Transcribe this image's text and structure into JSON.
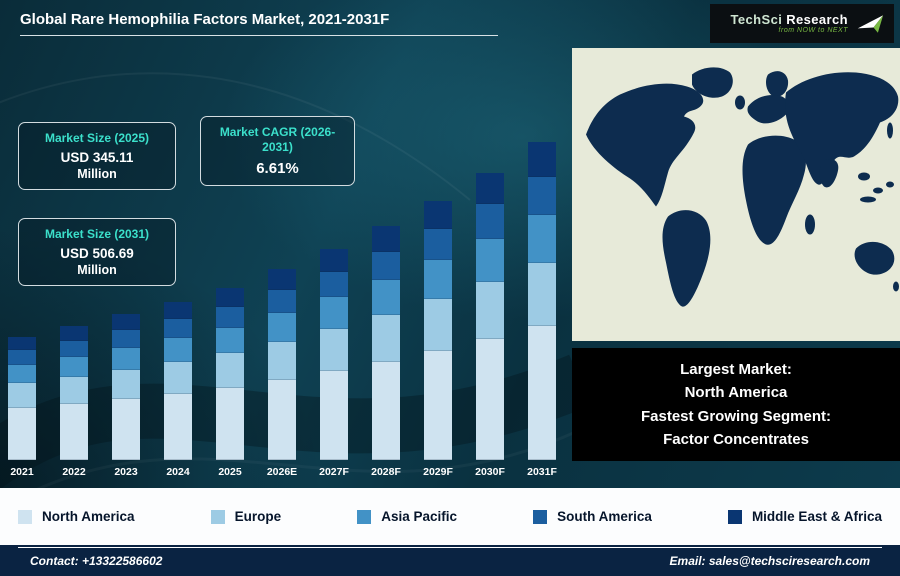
{
  "header": {
    "title": "Global Rare Hemophilia Factors Market, 2021-2031F",
    "logo": {
      "brand_techsci": "TechSci",
      "brand_research": "Research",
      "tagline": "from NOW to NEXT"
    }
  },
  "info_boxes": [
    {
      "title": "Market Size (2025)",
      "value": "USD 345.11",
      "unit": "Million"
    },
    {
      "title": "Market CAGR (2026-2031)",
      "value": "6.61%",
      "unit": ""
    },
    {
      "title": "Market Size (2031)",
      "value": "USD 506.69",
      "unit": "Million"
    }
  ],
  "map_panel": {
    "callout_lines": [
      "Largest Market:",
      "North America",
      "Fastest Growing Segment:",
      "Factor Concentrates"
    ]
  },
  "chart_data": {
    "type": "bar",
    "stacked": true,
    "title": "Global Rare Hemophilia Factors Market, 2021-2031F",
    "unit": "USD Million",
    "xlabel": "",
    "ylabel": "",
    "ylim": [
      0,
      520
    ],
    "grid": false,
    "y_axis_visible": false,
    "legend_position": "bottom",
    "labeled_values": {
      "2025": "USD 345.11 Million",
      "2031": "USD 506.69 Million",
      "cagr_2026_2031": "6.61%"
    },
    "categories": [
      "2021",
      "2022",
      "2023",
      "2024",
      "2025",
      "2026E",
      "2027F",
      "2028F",
      "2029F",
      "2030F",
      "2031F"
    ],
    "series": [
      {
        "name": "North America",
        "color": "#cfe3f0",
        "values": [
          117.9,
          124.1,
          130.7,
          137.6,
          145.0,
          154.5,
          164.7,
          175.6,
          187.2,
          199.6,
          212.8
        ]
      },
      {
        "name": "Europe",
        "color": "#9dcbe4",
        "values": [
          56.1,
          59.1,
          62.2,
          65.5,
          69.0,
          73.6,
          78.4,
          83.6,
          89.2,
          95.1,
          101.3
        ]
      },
      {
        "name": "Asia Pacific",
        "color": "#4292c6",
        "values": [
          42.1,
          44.3,
          46.7,
          49.2,
          51.8,
          55.2,
          58.8,
          62.7,
          66.9,
          71.3,
          76.0
        ]
      },
      {
        "name": "South America",
        "color": "#1b5e9f",
        "values": [
          33.7,
          35.5,
          37.3,
          39.3,
          41.4,
          44.2,
          47.1,
          50.2,
          53.5,
          57.0,
          60.8
        ]
      },
      {
        "name": "Middle East & Africa",
        "color": "#0a3672",
        "values": [
          30.9,
          32.5,
          34.2,
          36.0,
          38.0,
          40.5,
          43.1,
          46.0,
          49.0,
          52.3,
          55.7
        ]
      }
    ]
  },
  "legend": {
    "items": [
      {
        "label": "North America",
        "color": "#cfe3f0"
      },
      {
        "label": "Europe",
        "color": "#9dcbe4"
      },
      {
        "label": "Asia Pacific",
        "color": "#4292c6"
      },
      {
        "label": "South America",
        "color": "#1b5e9f"
      },
      {
        "label": "Middle East & Africa",
        "color": "#0a3672"
      }
    ]
  },
  "footer": {
    "contact": "Contact: +13322586602",
    "email": "Email: sales@techsciresearch.com"
  }
}
